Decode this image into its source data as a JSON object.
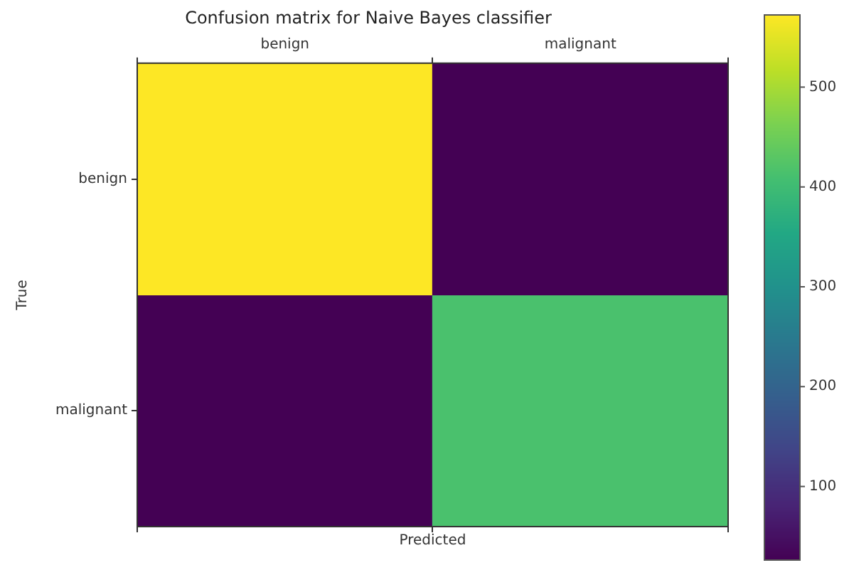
{
  "chart_data": {
    "type": "heatmap",
    "title": "Confusion matrix for Naive Bayes classifier",
    "xlabel": "Predicted",
    "ylabel": "True",
    "categories": [
      "benign",
      "malignant"
    ],
    "y_categories": [
      "benign",
      "malignant"
    ],
    "cells": [
      [
        573,
        27
      ],
      [
        27,
        415
      ]
    ],
    "clim": [
      27,
      573
    ],
    "cticks": [
      100,
      200,
      300,
      400,
      500
    ]
  }
}
